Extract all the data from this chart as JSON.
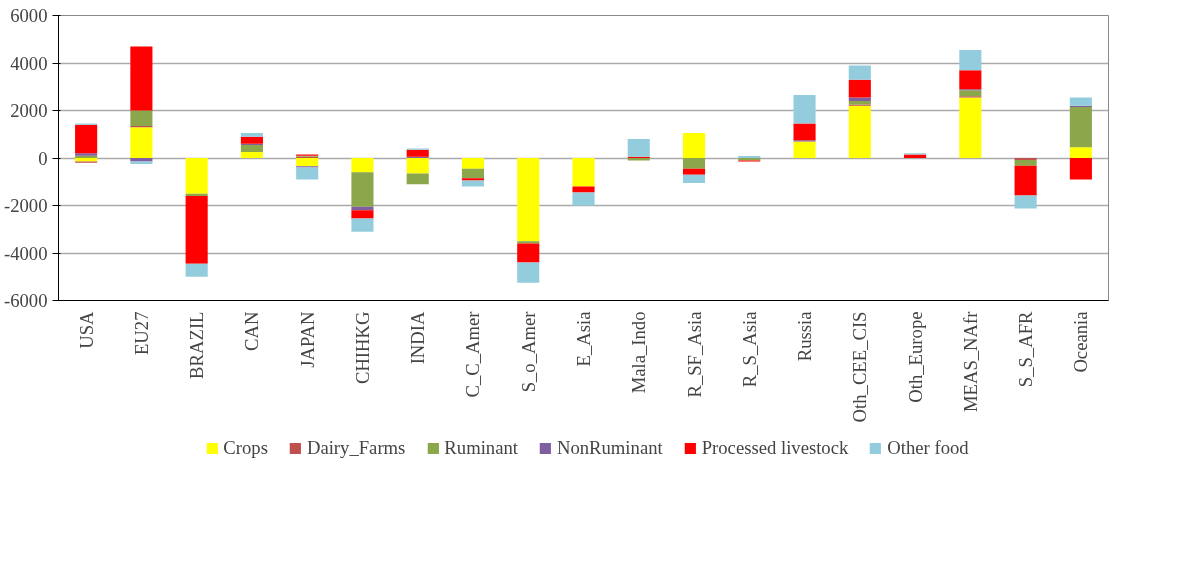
{
  "chart_data": {
    "type": "bar",
    "stacked": true,
    "categories": [
      "USA",
      "EU27",
      "BRAZIL",
      "CAN",
      "JAPAN",
      "CHIHKG",
      "INDIA",
      "C_C_Amer",
      "S_o_Amer",
      "E_Asia",
      "Mala_Indo",
      "R_SF_Asia",
      "R_S_Asia",
      "Russia",
      "Oth_CEE_CIS",
      "Oth_Europe",
      "MEAS_NAfr",
      "S_S_AFR",
      "Oceania"
    ],
    "series": [
      {
        "name": "Crops",
        "color": "#ffff00",
        "values": [
          -150,
          1300,
          -1500,
          250,
          -350,
          -600,
          -650,
          -450,
          -3500,
          -1200,
          0,
          1050,
          0,
          700,
          2200,
          0,
          2550,
          null,
          450
        ]
      },
      {
        "name": "Dairy_Farms",
        "color": "#c0504d",
        "values": [
          -50,
          50,
          0,
          0,
          50,
          0,
          0,
          0,
          0,
          0,
          0,
          0,
          0,
          0,
          50,
          0,
          50,
          -80,
          0
        ]
      },
      {
        "name": "Ruminant",
        "color": "#8ba64b",
        "values": [
          100,
          650,
          -100,
          300,
          50,
          -1450,
          -450,
          -400,
          -100,
          0,
          -100,
          -450,
          -100,
          0,
          150,
          0,
          250,
          -250,
          1700
        ]
      },
      {
        "name": "NonRuminant",
        "color": "#7f5f9f",
        "values": [
          100,
          -150,
          0,
          50,
          -50,
          -150,
          50,
          0,
          0,
          0,
          0,
          0,
          0,
          50,
          150,
          0,
          50,
          0,
          50
        ]
      },
      {
        "name": "Processed livestock",
        "color": "#ff0000",
        "values": [
          1200,
          2700,
          -2850,
          300,
          50,
          -350,
          300,
          -100,
          -800,
          -250,
          50,
          -250,
          -50,
          700,
          750,
          150,
          800,
          -1250,
          -900
        ]
      },
      {
        "name": "Other food",
        "color": "#93cddd",
        "values": [
          50,
          -100,
          -550,
          150,
          -500,
          -550,
          50,
          -250,
          -850,
          -550,
          750,
          -350,
          80,
          1200,
          600,
          50,
          850,
          -550,
          350
        ]
      }
    ],
    "ylim": [
      -6000,
      6000
    ],
    "yticks": [
      -6000,
      -4000,
      -2000,
      0,
      2000,
      4000,
      6000
    ],
    "grid": "y",
    "legend": "bottom"
  }
}
